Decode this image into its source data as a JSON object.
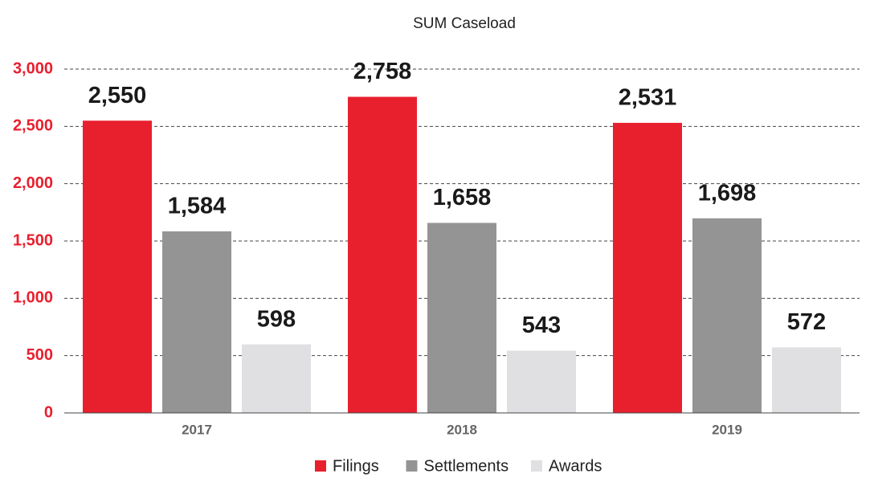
{
  "chart_data": {
    "type": "bar",
    "title": "SUM Caseload",
    "categories": [
      "2017",
      "2018",
      "2019"
    ],
    "series": [
      {
        "name": "Filings",
        "color": "#e8202e",
        "values": [
          2550,
          2758,
          2531
        ],
        "value_labels": [
          "2,550",
          "2,758",
          "2,531"
        ]
      },
      {
        "name": "Settlements",
        "color": "#949494",
        "values": [
          1584,
          1658,
          1698
        ],
        "value_labels": [
          "1,584",
          "1,658",
          "1,698"
        ]
      },
      {
        "name": "Awards",
        "color": "#e0e0e2",
        "values": [
          598,
          543,
          572
        ]
      }
    ],
    "ylim": [
      0,
      3000
    ],
    "yticks": [
      0,
      500,
      {
        "value": 1000,
        "label": "1,000"
      },
      {
        "value": 1500,
        "label": "1,500"
      },
      {
        "value": 2000,
        "label": "2,000"
      },
      {
        "value": 2500,
        "label": "2,500"
      },
      {
        "value": 3000,
        "label": "3,000"
      }
    ],
    "grid": true,
    "legend": "bottom"
  }
}
